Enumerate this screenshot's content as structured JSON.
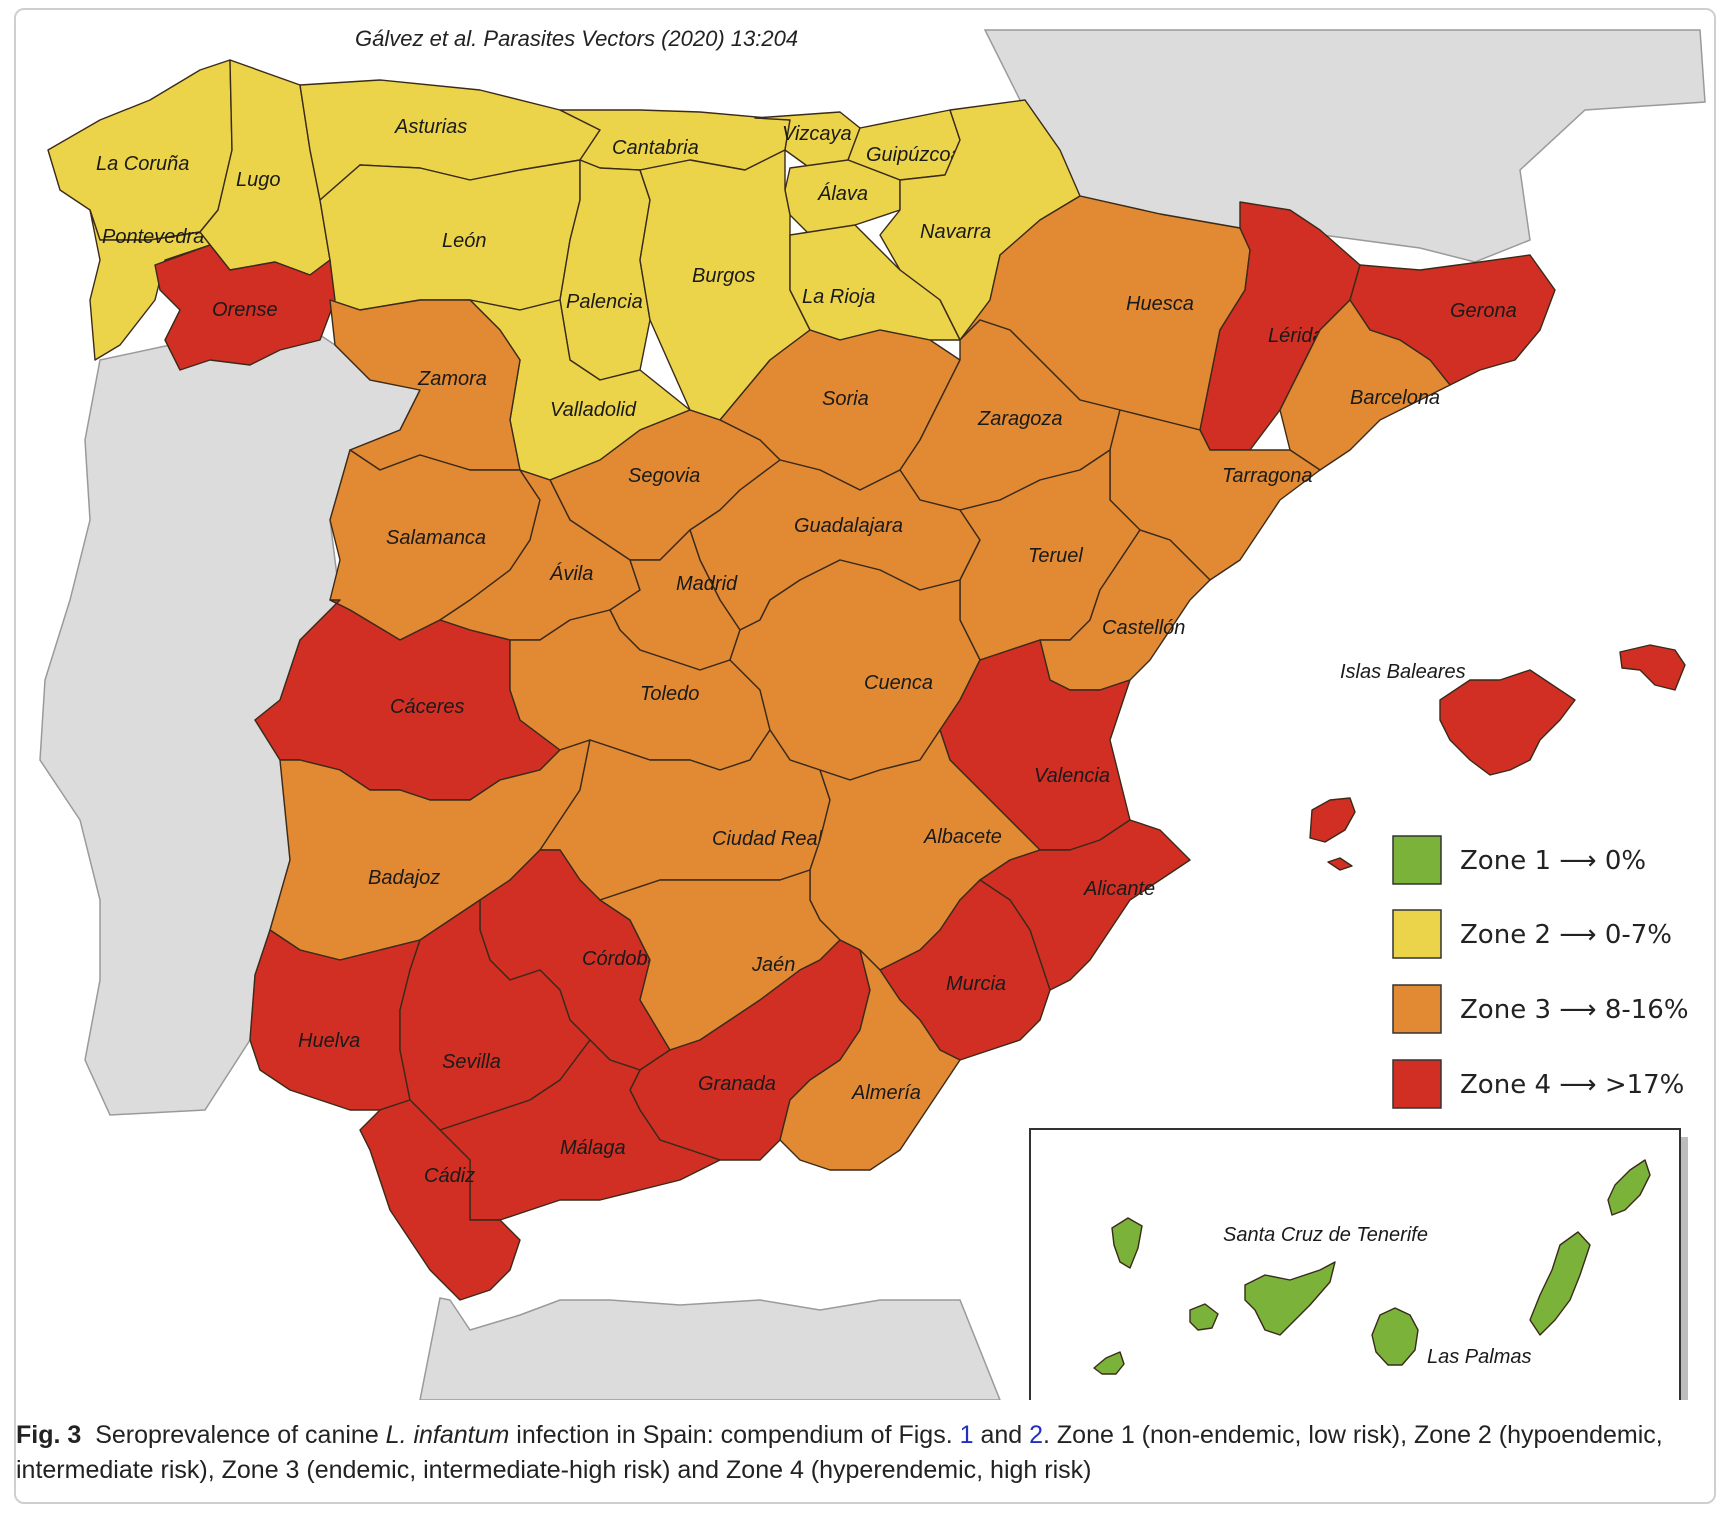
{
  "header": "Gálvez et al. Parasites Vectors (2020) 13:204",
  "colors": {
    "zone1": "#7ab23a",
    "zone2": "#ecd44a",
    "zone3": "#e28a33",
    "zone4": "#d12f24",
    "other_land": "#dcdcdc",
    "sea": "#ffffff",
    "border": "#3a2a1a"
  },
  "provinces": {
    "la_coruna": {
      "label": "La Coruña",
      "zone": 2
    },
    "lugo": {
      "label": "Lugo",
      "zone": 2
    },
    "asturias": {
      "label": "Asturias",
      "zone": 2
    },
    "cantabria": {
      "label": "Cantabria",
      "zone": 2
    },
    "vizcaya": {
      "label": "Vizcaya",
      "zone": 2
    },
    "guipuzcoa": {
      "label": "Guipúzcoa",
      "zone": 2
    },
    "alava": {
      "label": "Álava",
      "zone": 2
    },
    "navarra": {
      "label": "Navarra",
      "zone": 2
    },
    "pontevedra": {
      "label": "Pontevedra",
      "zone": 2
    },
    "leon": {
      "label": "León",
      "zone": 2
    },
    "palencia": {
      "label": "Palencia",
      "zone": 2
    },
    "burgos": {
      "label": "Burgos",
      "zone": 2
    },
    "la_rioja": {
      "label": "La Rioja",
      "zone": 2
    },
    "valladolid": {
      "label": "Valladolid",
      "zone": 2
    },
    "orense": {
      "label": "Orense",
      "zone": 4
    },
    "zamora": {
      "label": "Zamora",
      "zone": 3
    },
    "huesca": {
      "label": "Huesca",
      "zone": 3
    },
    "lerida": {
      "label": "Lérida",
      "zone": 4
    },
    "gerona": {
      "label": "Gerona",
      "zone": 4
    },
    "barcelona": {
      "label": "Barcelona",
      "zone": 3
    },
    "soria": {
      "label": "Soria",
      "zone": 3
    },
    "zaragoza": {
      "label": "Zaragoza",
      "zone": 3
    },
    "tarragona": {
      "label": "Tarragona",
      "zone": 3
    },
    "segovia": {
      "label": "Segovia",
      "zone": 3
    },
    "salamanca": {
      "label": "Salamanca",
      "zone": 3
    },
    "guadalajara": {
      "label": "Guadalajara",
      "zone": 3
    },
    "teruel": {
      "label": "Teruel",
      "zone": 3
    },
    "avila": {
      "label": "Ávila",
      "zone": 3
    },
    "madrid": {
      "label": "Madrid",
      "zone": 3
    },
    "castellon": {
      "label": "Castellón",
      "zone": 3
    },
    "caceres": {
      "label": "Cáceres",
      "zone": 4
    },
    "toledo": {
      "label": "Toledo",
      "zone": 3
    },
    "cuenca": {
      "label": "Cuenca",
      "zone": 3
    },
    "valencia": {
      "label": "Valencia",
      "zone": 4
    },
    "badajoz": {
      "label": "Badajoz",
      "zone": 3
    },
    "ciudad_real": {
      "label": "Ciudad Real",
      "zone": 3
    },
    "albacete": {
      "label": "Albacete",
      "zone": 3
    },
    "alicante": {
      "label": "Alicante",
      "zone": 4
    },
    "cordoba": {
      "label": "Córdoba",
      "zone": 4
    },
    "jaen": {
      "label": "Jaén",
      "zone": 3
    },
    "murcia": {
      "label": "Murcia",
      "zone": 4
    },
    "huelva": {
      "label": "Huelva",
      "zone": 4
    },
    "sevilla": {
      "label": "Sevilla",
      "zone": 4
    },
    "granada": {
      "label": "Granada",
      "zone": 4
    },
    "almeria": {
      "label": "Almería",
      "zone": 3
    },
    "malaga": {
      "label": "Málaga",
      "zone": 4
    },
    "cadiz": {
      "label": "Cádiz",
      "zone": 4
    },
    "islas_baleares": {
      "label": "Islas Baleares",
      "zone": 4
    },
    "santa_cruz_de_tenerife": {
      "label": "Santa Cruz de Tenerife",
      "zone": 1
    },
    "las_palmas": {
      "label": "Las Palmas",
      "zone": 1
    }
  },
  "legend": [
    {
      "zone": "Zone 1",
      "arrow": "⟶",
      "range": "0%"
    },
    {
      "zone": "Zone 2",
      "arrow": "⟶",
      "range": "0-7%"
    },
    {
      "zone": "Zone 3",
      "arrow": "⟶",
      "range": "8-16%"
    },
    {
      "zone": "Zone 4",
      "arrow": "⟶",
      "range": ">17%"
    }
  ],
  "caption": {
    "fig_label": "Fig. 3",
    "text_1": "Seroprevalence of canine ",
    "species": "L. infantum",
    "text_2": " infection in Spain: compendium of Figs. ",
    "ref_1": "1",
    "text_3": " and ",
    "ref_2": "2",
    "text_4": ". Zone 1 (non-endemic, low risk), Zone 2 (hypoendemic, intermediate risk), Zone 3 (endemic, intermediate-high risk) and Zone 4 (hyperendemic, high risk)"
  }
}
